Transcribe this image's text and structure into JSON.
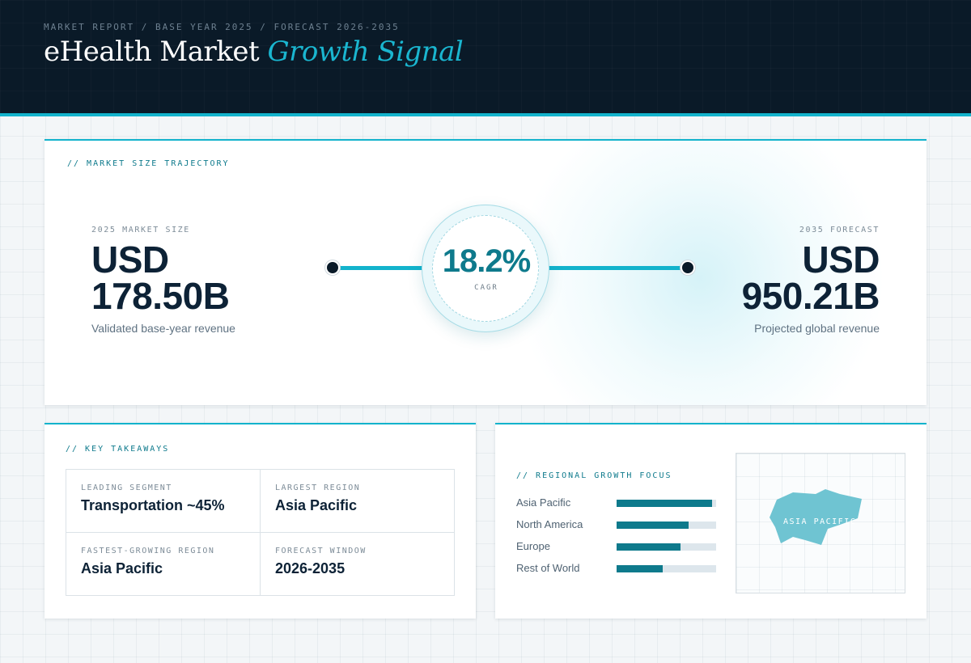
{
  "header": {
    "eyebrow": "MARKET REPORT / BASE YEAR 2025 / FORECAST 2026-2035",
    "title_main": "eHealth Market",
    "title_accent": "Growth Signal"
  },
  "trajectory": {
    "section_label": "// MARKET SIZE TRAJECTORY",
    "start": {
      "label": "2025 MARKET SIZE",
      "currency": "USD",
      "amount": "178.50B",
      "caption": "Validated base-year revenue"
    },
    "end": {
      "label": "2035 FORECAST",
      "currency": "USD",
      "amount": "950.21B",
      "caption": "Projected global revenue"
    },
    "cagr": {
      "value": "18.2%",
      "label": "CAGR"
    }
  },
  "takeaways": {
    "section_label": "// KEY TAKEAWAYS",
    "items": [
      {
        "label": "LEADING SEGMENT",
        "value": "Transportation ~45%"
      },
      {
        "label": "LARGEST REGION",
        "value": "Asia Pacific"
      },
      {
        "label": "FASTEST-GROWING REGION",
        "value": "Asia Pacific"
      },
      {
        "label": "FORECAST WINDOW",
        "value": "2026-2035"
      }
    ]
  },
  "regional": {
    "section_label": "// REGIONAL GROWTH FOCUS",
    "bars": [
      {
        "name": "Asia Pacific",
        "level": 0.96
      },
      {
        "name": "North America",
        "level": 0.72
      },
      {
        "name": "Europe",
        "level": 0.64
      },
      {
        "name": "Rest of World",
        "level": 0.46
      }
    ],
    "map_label": "ASIA PACIFIC"
  },
  "colors": {
    "accent": "#13b3cc",
    "accent_dark": "#0e7a8c",
    "navy": "#0a1a28",
    "map_fill": "#6fc4d2"
  }
}
